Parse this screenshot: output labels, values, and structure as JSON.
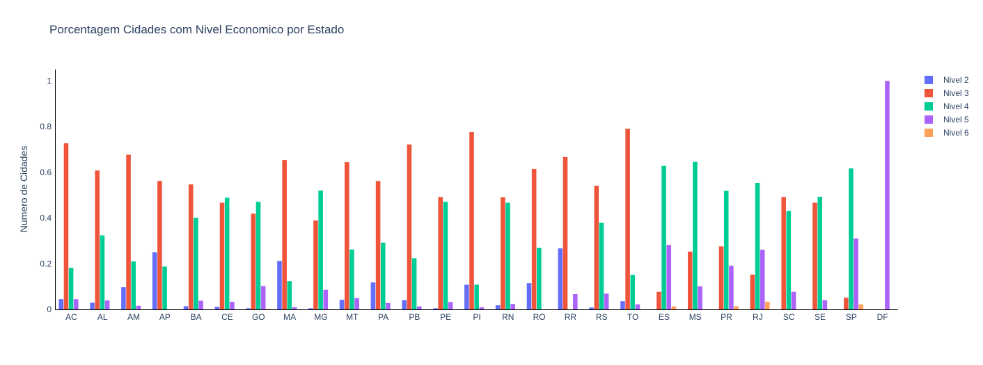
{
  "chart_data": {
    "type": "bar",
    "title": "Porcentagem Cidades com Nivel Economico por Estado",
    "xlabel": "",
    "ylabel": "Numero de Cidades",
    "ylim": [
      0,
      1.05
    ],
    "yticks": [
      "0",
      "0.2",
      "0.4",
      "0.6",
      "0.8",
      "1"
    ],
    "legend_position": "top-right",
    "grid": false,
    "categories": [
      "AC",
      "AL",
      "AM",
      "AP",
      "BA",
      "CE",
      "GO",
      "MA",
      "MG",
      "MT",
      "PA",
      "PB",
      "PE",
      "PI",
      "RN",
      "RO",
      "RR",
      "RS",
      "TO",
      "ES",
      "MS",
      "PR",
      "RJ",
      "SC",
      "SE",
      "SP",
      "DF"
    ],
    "series": [
      {
        "name": "Nivel 2",
        "color": "#636efa",
        "values": [
          0.045,
          0.029,
          0.097,
          0.25,
          0.014,
          0.011,
          0.005,
          0.212,
          0.005,
          0.042,
          0.118,
          0.04,
          0.005,
          0.108,
          0.018,
          0.115,
          0.267,
          0.008,
          0.036,
          0,
          0,
          0,
          0,
          0,
          0,
          0,
          0
        ]
      },
      {
        "name": "Nivel 3",
        "color": "#ef553b",
        "values": [
          0.727,
          0.608,
          0.677,
          0.5625,
          0.547,
          0.467,
          0.419,
          0.654,
          0.389,
          0.645,
          0.562,
          0.722,
          0.492,
          0.776,
          0.491,
          0.615,
          0.667,
          0.541,
          0.791,
          0.077,
          0.253,
          0.276,
          0.152,
          0.492,
          0.467,
          0.051,
          0
        ]
      },
      {
        "name": "Nivel 4",
        "color": "#00cc96",
        "values": [
          0.182,
          0.324,
          0.21,
          0.1875,
          0.401,
          0.489,
          0.471,
          0.124,
          0.52,
          0.262,
          0.292,
          0.224,
          0.471,
          0.108,
          0.467,
          0.269,
          0,
          0.379,
          0.151,
          0.628,
          0.646,
          0.519,
          0.554,
          0.431,
          0.493,
          0.617,
          0
        ]
      },
      {
        "name": "Nivel 5",
        "color": "#ab63fa",
        "values": [
          0.045,
          0.039,
          0.016,
          0,
          0.038,
          0.033,
          0.102,
          0.009,
          0.086,
          0.049,
          0.028,
          0.013,
          0.032,
          0.009,
          0.024,
          0,
          0.067,
          0.069,
          0.022,
          0.282,
          0.101,
          0.191,
          0.261,
          0.077,
          0.04,
          0.31,
          1.0
        ]
      },
      {
        "name": "Nivel 6",
        "color": "#ffa15a",
        "values": [
          0,
          0,
          0,
          0,
          0,
          0,
          0.002,
          0,
          0.001,
          0,
          0,
          0,
          0,
          0,
          0,
          0,
          0,
          0,
          0,
          0.013,
          0,
          0.014,
          0.033,
          0,
          0,
          0.022,
          0
        ]
      }
    ]
  }
}
